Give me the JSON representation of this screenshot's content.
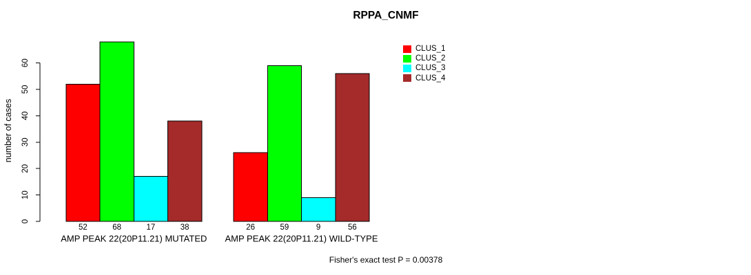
{
  "title": "RPPA_CNMF",
  "footnote": "Fisher's exact test P = 0.00378",
  "legend": {
    "items": [
      {
        "label": "CLUS_1",
        "color": "#FF0000"
      },
      {
        "label": "CLUS_2",
        "color": "#00FF00"
      },
      {
        "label": "CLUS_3",
        "color": "#00FFFF"
      },
      {
        "label": "CLUS_4",
        "color": "#A52A2A"
      }
    ]
  },
  "chart_data": {
    "type": "bar",
    "title": "RPPA_CNMF",
    "xlabel": "",
    "ylabel": "number of cases",
    "ylim": [
      0,
      68
    ],
    "yticks": [
      0,
      10,
      20,
      30,
      40,
      50,
      60
    ],
    "grid": false,
    "legend_position": "top-right",
    "categories": [
      "AMP PEAK 22(20P11.21) MUTATED",
      "AMP PEAK 22(20P11.21) WILD-TYPE"
    ],
    "series": [
      {
        "name": "CLUS_1",
        "color": "#FF0000",
        "values": [
          52,
          26
        ]
      },
      {
        "name": "CLUS_2",
        "color": "#00FF00",
        "values": [
          68,
          59
        ]
      },
      {
        "name": "CLUS_3",
        "color": "#00FFFF",
        "values": [
          17,
          9
        ]
      },
      {
        "name": "CLUS_4",
        "color": "#A52A2A",
        "values": [
          38,
          56
        ]
      }
    ],
    "bar_value_labels": [
      [
        52,
        68,
        17,
        38
      ],
      [
        26,
        59,
        9,
        56
      ]
    ],
    "annotation": "Fisher's exact test P = 0.00378"
  }
}
